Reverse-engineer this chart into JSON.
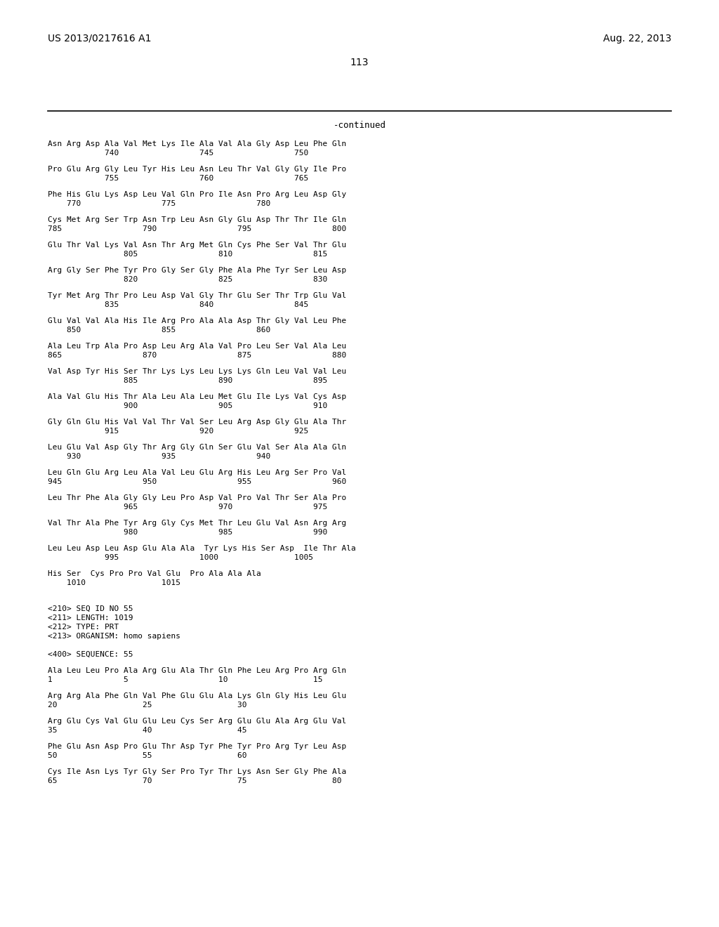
{
  "header_left": "US 2013/0217616 A1",
  "header_right": "Aug. 22, 2013",
  "page_number": "113",
  "continued_label": "-continued",
  "background_color": "#ffffff",
  "content": [
    [
      "Asn Arg Asp Ala Val Met Lys Ile Ala Val Ala Gly Asp Leu Phe Gln",
      "            740                 745                 750"
    ],
    [
      "Pro Glu Arg Gly Leu Tyr His Leu Asn Leu Thr Val Gly Gly Ile Pro",
      "            755                 760                 765"
    ],
    [
      "Phe His Glu Lys Asp Leu Val Gln Pro Ile Asn Pro Arg Leu Asp Gly",
      "    770                 775                 780"
    ],
    [
      "Cys Met Arg Ser Trp Asn Trp Leu Asn Gly Glu Asp Thr Thr Ile Gln",
      "785                 790                 795                 800"
    ],
    [
      "Glu Thr Val Lys Val Asn Thr Arg Met Gln Cys Phe Ser Val Thr Glu",
      "                805                 810                 815"
    ],
    [
      "Arg Gly Ser Phe Tyr Pro Gly Ser Gly Phe Ala Phe Tyr Ser Leu Asp",
      "                820                 825                 830"
    ],
    [
      "Tyr Met Arg Thr Pro Leu Asp Val Gly Thr Glu Ser Thr Trp Glu Val",
      "            835                 840                 845"
    ],
    [
      "Glu Val Val Ala His Ile Arg Pro Ala Ala Asp Thr Gly Val Leu Phe",
      "    850                 855                 860"
    ],
    [
      "Ala Leu Trp Ala Pro Asp Leu Arg Ala Val Pro Leu Ser Val Ala Leu",
      "865                 870                 875                 880"
    ],
    [
      "Val Asp Tyr His Ser Thr Lys Lys Leu Lys Lys Gln Leu Val Val Leu",
      "                885                 890                 895"
    ],
    [
      "Ala Val Glu His Thr Ala Leu Ala Leu Met Glu Ile Lys Val Cys Asp",
      "                900                 905                 910"
    ],
    [
      "Gly Gln Glu His Val Val Thr Val Ser Leu Arg Asp Gly Glu Ala Thr",
      "            915                 920                 925"
    ],
    [
      "Leu Glu Val Asp Gly Thr Arg Gly Gln Ser Glu Val Ser Ala Ala Gln",
      "    930                 935                 940"
    ],
    [
      "Leu Gln Glu Arg Leu Ala Val Leu Glu Arg His Leu Arg Ser Pro Val",
      "945                 950                 955                 960"
    ],
    [
      "Leu Thr Phe Ala Gly Gly Leu Pro Asp Val Pro Val Thr Ser Ala Pro",
      "                965                 970                 975"
    ],
    [
      "Val Thr Ala Phe Tyr Arg Gly Cys Met Thr Leu Glu Val Asn Arg Arg",
      "                980                 985                 990"
    ],
    [
      "Leu Leu Asp Leu Asp Glu Ala Ala  Tyr Lys His Ser Asp  Ile Thr Ala",
      "            995                 1000                1005"
    ],
    [
      "His Ser  Cys Pro Pro Val Glu  Pro Ala Ala Ala",
      "    1010                1015"
    ]
  ],
  "seq_id_lines": [
    "<210> SEQ ID NO 55",
    "<211> LENGTH: 1019",
    "<212> TYPE: PRT",
    "<213> ORGANISM: homo sapiens"
  ],
  "seq400_label": "<400> SEQUENCE: 55",
  "seq55_content": [
    [
      "Ala Leu Leu Pro Ala Arg Glu Ala Thr Gln Phe Leu Arg Pro Arg Gln",
      "1               5                   10                  15"
    ],
    [
      "Arg Arg Ala Phe Gln Val Phe Glu Glu Ala Lys Gln Gly His Leu Glu",
      "20                  25                  30"
    ],
    [
      "Arg Glu Cys Val Glu Glu Leu Cys Ser Arg Glu Glu Ala Arg Glu Val",
      "35                  40                  45"
    ],
    [
      "Phe Glu Asn Asp Pro Glu Thr Asp Tyr Phe Tyr Pro Arg Tyr Leu Asp",
      "50                  55                  60"
    ],
    [
      "Cys Ile Asn Lys Tyr Gly Ser Pro Tyr Thr Lys Asn Ser Gly Phe Ala",
      "65                  70                  75                  80"
    ]
  ]
}
